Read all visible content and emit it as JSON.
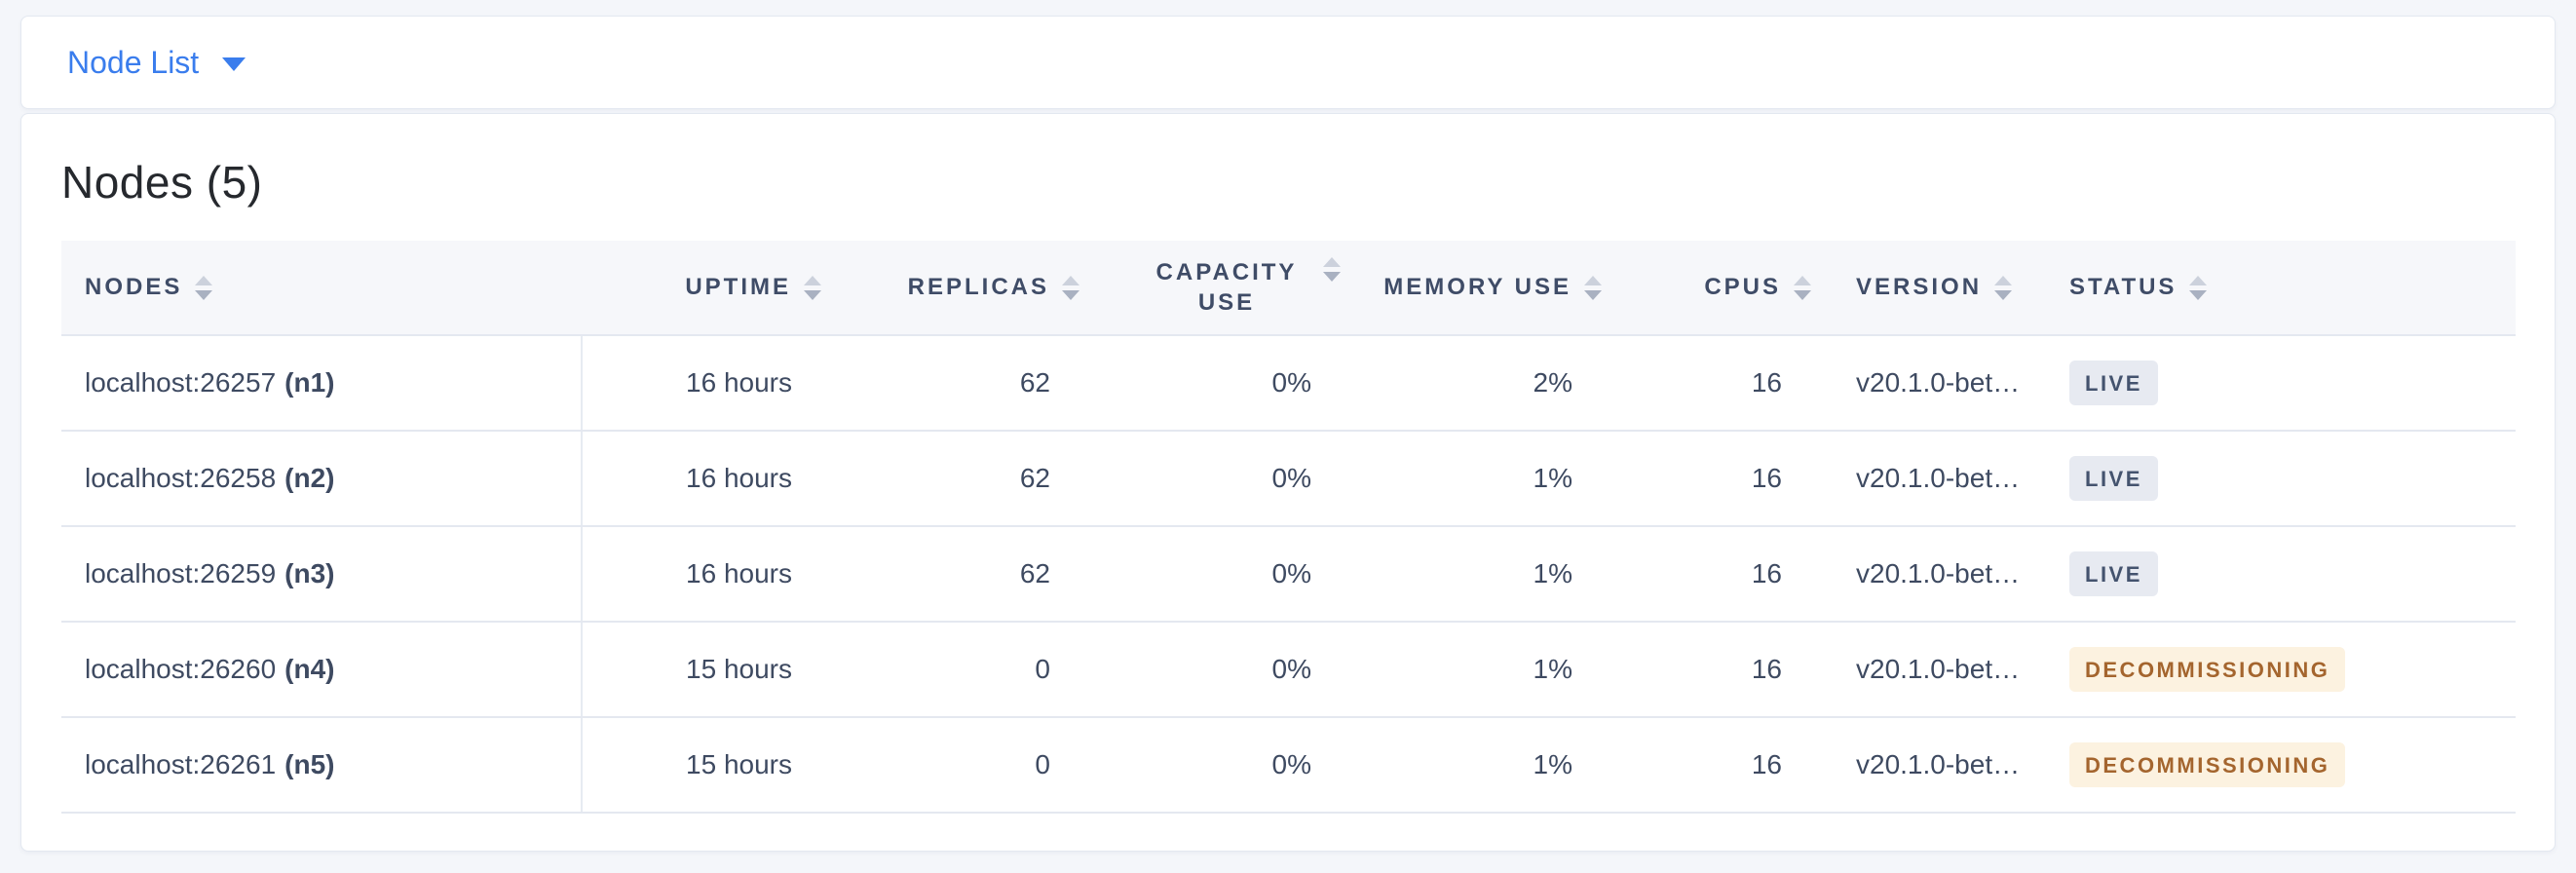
{
  "topbar": {
    "dropdown_label": "Node List"
  },
  "panel": {
    "title": "Nodes (5)"
  },
  "table": {
    "headers": {
      "nodes": "NODES",
      "uptime": "UPTIME",
      "replicas": "REPLICAS",
      "capacity_use": "CAPACITY USE",
      "memory_use": "MEMORY USE",
      "cpus": "CPUS",
      "version": "VERSION",
      "status": "STATUS"
    },
    "rows": [
      {
        "node_address": "localhost:26257",
        "node_id": "(n1)",
        "uptime": "16 hours",
        "replicas": "62",
        "capacity_use": "0%",
        "memory_use": "2%",
        "cpus": "16",
        "version": "v20.1.0-bet…",
        "status": "LIVE"
      },
      {
        "node_address": "localhost:26258",
        "node_id": "(n2)",
        "uptime": "16 hours",
        "replicas": "62",
        "capacity_use": "0%",
        "memory_use": "1%",
        "cpus": "16",
        "version": "v20.1.0-bet…",
        "status": "LIVE"
      },
      {
        "node_address": "localhost:26259",
        "node_id": "(n3)",
        "uptime": "16 hours",
        "replicas": "62",
        "capacity_use": "0%",
        "memory_use": "1%",
        "cpus": "16",
        "version": "v20.1.0-bet…",
        "status": "LIVE"
      },
      {
        "node_address": "localhost:26260",
        "node_id": "(n4)",
        "uptime": "15 hours",
        "replicas": "0",
        "capacity_use": "0%",
        "memory_use": "1%",
        "cpus": "16",
        "version": "v20.1.0-bet…",
        "status": "DECOMMISSIONING"
      },
      {
        "node_address": "localhost:26261",
        "node_id": "(n5)",
        "uptime": "15 hours",
        "replicas": "0",
        "capacity_use": "0%",
        "memory_use": "1%",
        "cpus": "16",
        "version": "v20.1.0-bet…",
        "status": "DECOMMISSIONING"
      }
    ],
    "colors": {
      "accent_blue": "#3a7ded",
      "header_text": "#3f4c67",
      "body_text": "#3e4a61",
      "live_badge_bg": "#e7eaf1",
      "live_badge_text": "#44536e",
      "decommissioning_badge_bg": "#fcf2e0",
      "decommissioning_badge_text": "#a4652e"
    }
  }
}
